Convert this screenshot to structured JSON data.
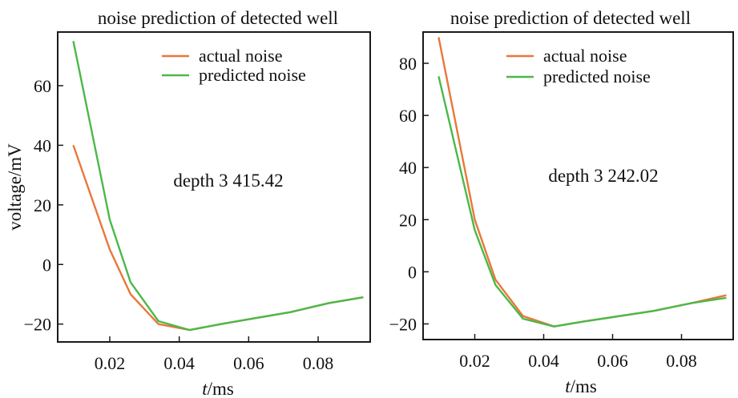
{
  "chart_data": [
    {
      "type": "line",
      "title": "noise prediction of detected well",
      "xlabel_italic": "t",
      "xlabel_rest": "/ms",
      "ylabel": "voltage/mV",
      "annotation": "depth 3 415.42",
      "xlim": [
        0.005,
        0.095
      ],
      "ylim": [
        -26,
        78
      ],
      "xticks": [
        0.02,
        0.04,
        0.06,
        0.08
      ],
      "xtick_labels": [
        "0.02",
        "0.04",
        "0.06",
        "0.08"
      ],
      "yticks": [
        -20,
        0,
        20,
        40,
        60
      ],
      "ytick_labels": [
        "−20",
        "0",
        "20",
        "40",
        "60"
      ],
      "legend_position": "top-right",
      "colors": {
        "actual": "#e8783a",
        "predicted": "#4cb84a"
      },
      "series": [
        {
          "name": "actual noise",
          "x": [
            0.0095,
            0.02,
            0.026,
            0.034,
            0.043,
            0.052,
            0.062,
            0.072,
            0.083,
            0.093
          ],
          "y": [
            40,
            5,
            -10,
            -20,
            -22,
            -20,
            -18,
            -16,
            -13,
            -11
          ]
        },
        {
          "name": "predicted noise",
          "x": [
            0.0095,
            0.02,
            0.026,
            0.034,
            0.043,
            0.052,
            0.062,
            0.072,
            0.083,
            0.093
          ],
          "y": [
            75,
            15,
            -6,
            -19,
            -22,
            -20,
            -18,
            -16,
            -13,
            -11
          ]
        }
      ]
    },
    {
      "type": "line",
      "title": "noise prediction of detected well",
      "xlabel_italic": "t",
      "xlabel_rest": "/ms",
      "ylabel": "",
      "annotation": "depth 3 242.02",
      "xlim": [
        0.005,
        0.095
      ],
      "ylim": [
        -26,
        92
      ],
      "xticks": [
        0.02,
        0.04,
        0.06,
        0.08
      ],
      "xtick_labels": [
        "0.02",
        "0.04",
        "0.06",
        "0.08"
      ],
      "yticks": [
        -20,
        0,
        20,
        40,
        60,
        80
      ],
      "ytick_labels": [
        "−20",
        "0",
        "20",
        "40",
        "60",
        "80"
      ],
      "legend_position": "top-right",
      "colors": {
        "actual": "#e8783a",
        "predicted": "#4cb84a"
      },
      "series": [
        {
          "name": "actual noise",
          "x": [
            0.0095,
            0.02,
            0.026,
            0.034,
            0.043,
            0.052,
            0.062,
            0.072,
            0.083,
            0.093
          ],
          "y": [
            90,
            20,
            -3,
            -17,
            -21,
            -19,
            -17,
            -15,
            -12,
            -9
          ]
        },
        {
          "name": "predicted noise",
          "x": [
            0.0095,
            0.02,
            0.026,
            0.034,
            0.043,
            0.052,
            0.062,
            0.072,
            0.083,
            0.093
          ],
          "y": [
            75,
            16,
            -5,
            -18,
            -21,
            -19,
            -17,
            -15,
            -12,
            -10
          ]
        }
      ]
    }
  ]
}
